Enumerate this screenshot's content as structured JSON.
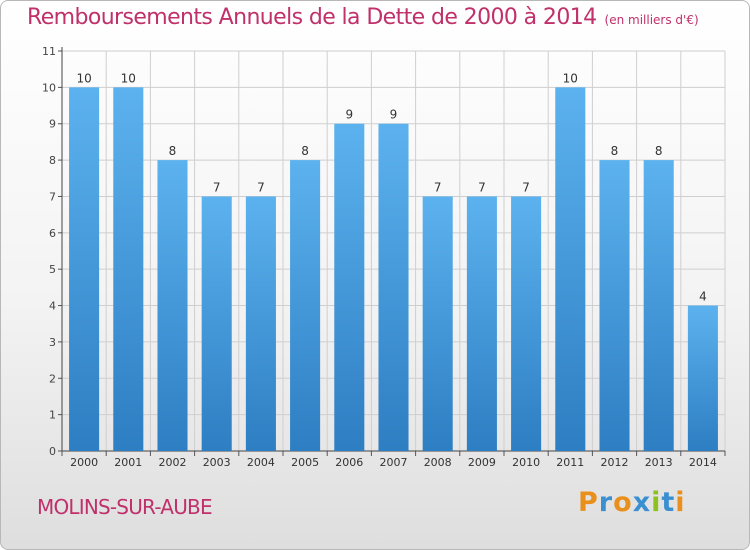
{
  "header": {
    "title": "Remboursements Annuels de la Dette de 2000 à 2014",
    "unit": "(en milliers d'€)"
  },
  "footer": {
    "commune": "MOLINS-SUR-AUBE",
    "logo": "Proxiti"
  },
  "colors": {
    "bar": "#4a9edf",
    "bar_light": "#5cb2ee",
    "bar_dark": "#2d7ec2",
    "title": "#c0306a",
    "grid": "#cfcfcf",
    "logo_letters": [
      "#e8901b",
      "#3a8fd1",
      "#e8901b",
      "#3a8fd1",
      "#8cc21e",
      "#3a8fd1",
      "#e8901b"
    ]
  },
  "chart_data": {
    "type": "bar",
    "title": "Remboursements Annuels de la Dette de 2000 à 2014",
    "subtitle": "(en milliers d'€)",
    "xlabel": "",
    "ylabel": "",
    "categories": [
      "2000",
      "2001",
      "2002",
      "2003",
      "2004",
      "2005",
      "2006",
      "2007",
      "2008",
      "2009",
      "2010",
      "2011",
      "2012",
      "2013",
      "2014"
    ],
    "values": [
      10,
      10,
      8,
      7,
      7,
      8,
      9,
      9,
      7,
      7,
      7,
      10,
      8,
      8,
      4
    ],
    "ylim": [
      0,
      11
    ],
    "yticks": [
      0,
      1,
      2,
      3,
      4,
      5,
      6,
      7,
      8,
      9,
      10,
      11
    ],
    "grid": true,
    "data_labels": true
  }
}
